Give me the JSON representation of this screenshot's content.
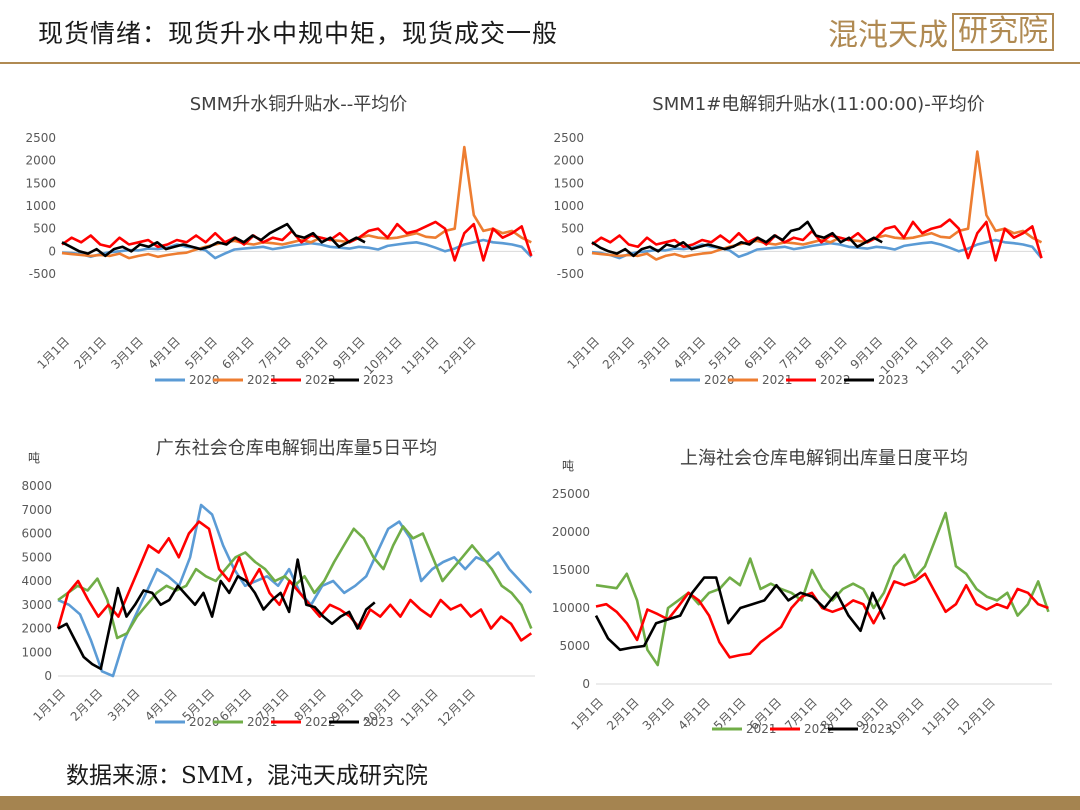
{
  "header": {
    "title": "现货情绪：现货升水中规中矩，现货成交一般",
    "logo_text": "混沌天成",
    "logo_box_text": "研究院"
  },
  "footer": {
    "source": "数据来源：SMM，混沌天成研究院"
  },
  "colors": {
    "2020": "#5b9bd5",
    "2021_premium": "#ed7d31",
    "2021_inventory": "#70ad47",
    "2022": "#ff0000",
    "2023": "#000000",
    "brand": "#b08a52"
  },
  "chart_data": [
    {
      "type": "line",
      "title": "SMM升水铜升贴水--平均价",
      "ylim": [
        -500,
        2500
      ],
      "yticks": [
        "2500",
        "2000",
        "1500",
        "1000",
        "500",
        "0",
        "-500"
      ],
      "xticks": [
        "1月1日",
        "2月1日",
        "3月1日",
        "4月1日",
        "5月1日",
        "6月1日",
        "7月1日",
        "8月1日",
        "9月1日",
        "10月1日",
        "11月1日",
        "12月1日"
      ],
      "legend": [
        "2020",
        "2021",
        "2022",
        "2023"
      ],
      "series": [
        {
          "name": "2020",
          "end_month": 12.7,
          "values": [
            -30,
            -40,
            -60,
            -120,
            -60,
            -20,
            0,
            30,
            20,
            60,
            50,
            80,
            150,
            100,
            80,
            20,
            -150,
            -50,
            40,
            60,
            80,
            100,
            50,
            80,
            120,
            150,
            180,
            150,
            100,
            80,
            60,
            100,
            80,
            40,
            120,
            150,
            180,
            200,
            150,
            80,
            0,
            60,
            150,
            200,
            250,
            200,
            180,
            150,
            100,
            -120
          ]
        },
        {
          "name": "2021",
          "end_month": 12.7,
          "values": [
            -40,
            -60,
            -80,
            -100,
            -80,
            -100,
            -50,
            -150,
            -100,
            -60,
            -120,
            -80,
            -50,
            -30,
            40,
            100,
            150,
            200,
            230,
            180,
            150,
            200,
            180,
            150,
            200,
            250,
            200,
            300,
            250,
            230,
            200,
            300,
            350,
            300,
            280,
            300,
            350,
            400,
            320,
            300,
            450,
            500,
            2300,
            800,
            450,
            500,
            400,
            450,
            300,
            200
          ]
        },
        {
          "name": "2022",
          "end_month": 12.7,
          "values": [
            150,
            300,
            200,
            350,
            150,
            100,
            300,
            150,
            200,
            250,
            100,
            150,
            250,
            200,
            350,
            200,
            400,
            200,
            300,
            150,
            350,
            200,
            300,
            250,
            450,
            200,
            350,
            300,
            250,
            400,
            200,
            300,
            450,
            500,
            300,
            600,
            400,
            450,
            550,
            650,
            500,
            -200,
            400,
            600,
            -200,
            500,
            300,
            400,
            550,
            -100
          ]
        },
        {
          "name": "2023",
          "end_month": 8.2,
          "values": [
            200,
            100,
            0,
            -50,
            50,
            -100,
            50,
            100,
            0,
            150,
            100,
            200,
            50,
            100,
            150,
            100,
            50,
            100,
            200,
            150,
            300,
            200,
            350,
            250,
            400,
            500,
            600,
            350,
            300,
            400,
            200,
            300,
            100,
            200,
            300,
            200
          ]
        }
      ]
    },
    {
      "type": "line",
      "title": "SMM1#电解铜升贴水(11:00:00)-平均价",
      "ylim": [
        -500,
        2500
      ],
      "yticks": [
        "2500",
        "2000",
        "1500",
        "1000",
        "500",
        "0",
        "-500"
      ],
      "xticks": [
        "1月1日",
        "2月1日",
        "3月1日",
        "4月1日",
        "5月1日",
        "6月1日",
        "7月1日",
        "8月1日",
        "9月1日",
        "10月1日",
        "11月1日",
        "12月1日"
      ],
      "legend": [
        "2020",
        "2021",
        "2022",
        "2023"
      ],
      "series": [
        {
          "name": "2020",
          "end_month": 12.7,
          "values": [
            -20,
            -40,
            -80,
            -150,
            -60,
            -20,
            0,
            30,
            20,
            60,
            50,
            80,
            150,
            100,
            80,
            20,
            -120,
            -50,
            40,
            60,
            80,
            100,
            50,
            80,
            120,
            150,
            180,
            150,
            100,
            80,
            60,
            100,
            80,
            40,
            120,
            150,
            180,
            200,
            150,
            80,
            0,
            60,
            150,
            200,
            250,
            200,
            180,
            150,
            100,
            -150
          ]
        },
        {
          "name": "2021",
          "end_month": 12.7,
          "values": [
            -40,
            -60,
            -80,
            -100,
            -80,
            -100,
            -50,
            -180,
            -100,
            -60,
            -120,
            -80,
            -50,
            -30,
            40,
            100,
            150,
            200,
            230,
            180,
            150,
            200,
            180,
            150,
            200,
            250,
            200,
            300,
            250,
            230,
            200,
            300,
            350,
            300,
            280,
            300,
            350,
            400,
            320,
            300,
            450,
            500,
            2200,
            800,
            450,
            500,
            400,
            450,
            300,
            200
          ]
        },
        {
          "name": "2022",
          "end_month": 12.7,
          "values": [
            150,
            300,
            200,
            350,
            150,
            100,
            300,
            150,
            200,
            250,
            100,
            150,
            250,
            200,
            350,
            200,
            400,
            200,
            300,
            150,
            350,
            200,
            300,
            250,
            450,
            200,
            350,
            300,
            250,
            400,
            200,
            300,
            500,
            550,
            300,
            650,
            400,
            500,
            550,
            700,
            500,
            -150,
            400,
            650,
            -200,
            500,
            300,
            400,
            550,
            -150
          ]
        },
        {
          "name": "2023",
          "end_month": 8.2,
          "values": [
            200,
            80,
            0,
            -50,
            50,
            -100,
            50,
            100,
            0,
            150,
            100,
            200,
            50,
            100,
            150,
            100,
            50,
            100,
            200,
            150,
            300,
            200,
            350,
            250,
            450,
            500,
            650,
            350,
            300,
            400,
            200,
            300,
            100,
            200,
            300,
            200
          ]
        }
      ]
    },
    {
      "type": "line",
      "title": "广东社会仓库电解铜出库量5日平均",
      "unit": "吨",
      "ylim": [
        0,
        8000
      ],
      "yticks": [
        "8000",
        "7000",
        "6000",
        "5000",
        "4000",
        "3000",
        "2000",
        "1000",
        "0"
      ],
      "xticks": [
        "1月1日",
        "2月1日",
        "3月1日",
        "4月1日",
        "5月1日",
        "6月1日",
        "7月1日",
        "8月1日",
        "9月1日",
        "10月1日",
        "11月1日",
        "12月1日"
      ],
      "legend": [
        "2020",
        "2021",
        "2022",
        "2023"
      ],
      "series": [
        {
          "name": "2020",
          "end_month": 12.7,
          "values": [
            3200,
            3000,
            2600,
            1500,
            200,
            0,
            1500,
            2500,
            3500,
            4500,
            4200,
            3800,
            5000,
            7200,
            6800,
            5500,
            4500,
            3800,
            4000,
            4200,
            3800,
            4500,
            3500,
            3000,
            3800,
            4000,
            3500,
            3800,
            4200,
            5200,
            6200,
            6500,
            5800,
            4000,
            4500,
            4800,
            5000,
            4500,
            5000,
            4800,
            5200,
            4500,
            4000,
            3500
          ]
        },
        {
          "name": "2021",
          "end_month": 12.7,
          "values": [
            3200,
            3500,
            3800,
            3600,
            4100,
            3200,
            1600,
            1800,
            2500,
            3000,
            3500,
            3800,
            3600,
            3800,
            4500,
            4200,
            4000,
            4500,
            5000,
            5200,
            4800,
            4500,
            4000,
            4200,
            3800,
            4200,
            3500,
            4000,
            4800,
            5500,
            6200,
            5800,
            5000,
            4500,
            5500,
            6300,
            5800,
            6000,
            5000,
            4000,
            4500,
            5000,
            5500,
            5000,
            4500,
            3800,
            3500,
            3000,
            2000
          ]
        },
        {
          "name": "2022",
          "end_month": 12.7,
          "values": [
            2000,
            3500,
            4000,
            3200,
            2500,
            3000,
            2500,
            3500,
            4500,
            5500,
            5200,
            5800,
            5000,
            6000,
            6500,
            6200,
            4500,
            4000,
            5000,
            3800,
            4500,
            3500,
            3000,
            4000,
            3500,
            3000,
            2500,
            3000,
            2800,
            2500,
            2000,
            2800,
            2500,
            3000,
            2500,
            3200,
            2800,
            2500,
            3200,
            2800,
            3000,
            2500,
            2800,
            2000,
            2500,
            2200,
            1500,
            1800
          ]
        },
        {
          "name": "2023",
          "end_month": 8.5,
          "values": [
            2000,
            2200,
            1500,
            800,
            500,
            300,
            2000,
            3700,
            2500,
            3000,
            3600,
            3500,
            3000,
            3200,
            3800,
            3400,
            3000,
            3500,
            2500,
            4000,
            3500,
            4200,
            4000,
            3500,
            2800,
            3200,
            3500,
            2700,
            4900,
            3000,
            2900,
            2500,
            2200,
            2500,
            2700,
            2000,
            2800,
            3100
          ]
        }
      ]
    },
    {
      "type": "line",
      "title": "上海社会仓库电解铜出库量日度平均",
      "unit": "吨",
      "ylim": [
        0,
        25000
      ],
      "yticks": [
        "25000",
        "20000",
        "15000",
        "10000",
        "5000",
        "0"
      ],
      "xticks": [
        "1月1日",
        "2月1日",
        "3月1日",
        "4月1日",
        "5月1日",
        "6月1日",
        "7月1日",
        "8月1日",
        "9月1日",
        "10月1日",
        "11月1日",
        "12月1日"
      ],
      "legend": [
        "2021",
        "2022",
        "2023"
      ],
      "series": [
        {
          "name": "2021",
          "end_month": 12.7,
          "values": [
            13000,
            12800,
            12600,
            14500,
            11000,
            4500,
            2500,
            10000,
            11000,
            12000,
            10500,
            12000,
            12500,
            14000,
            13000,
            16500,
            12500,
            13200,
            12500,
            12000,
            11000,
            15000,
            12500,
            11000,
            12500,
            13200,
            12500,
            10000,
            12000,
            15500,
            17000,
            14000,
            15500,
            19000,
            22500,
            15500,
            14500,
            12500,
            11500,
            11000,
            12000,
            9000,
            10500,
            13500,
            9500
          ]
        },
        {
          "name": "2022",
          "end_month": 12.7,
          "values": [
            10200,
            10500,
            9500,
            8000,
            5800,
            9800,
            9200,
            8500,
            10200,
            12000,
            11000,
            9000,
            5500,
            3500,
            3800,
            4000,
            5500,
            6500,
            7500,
            10000,
            11500,
            12000,
            10000,
            9500,
            10000,
            11000,
            10500,
            8000,
            10500,
            13500,
            13000,
            13500,
            14500,
            12000,
            9500,
            10500,
            13000,
            10500,
            9800,
            10500,
            10000,
            12500,
            12000,
            10500,
            10000
          ]
        },
        {
          "name": "2023",
          "end_month": 8.1,
          "values": [
            9000,
            6000,
            4500,
            4800,
            5000,
            8000,
            8500,
            9000,
            12000,
            14000,
            14000,
            8000,
            10000,
            10500,
            11000,
            13000,
            11000,
            12000,
            11500,
            10000,
            12000,
            9000,
            7000,
            12000,
            8500
          ]
        }
      ]
    }
  ]
}
